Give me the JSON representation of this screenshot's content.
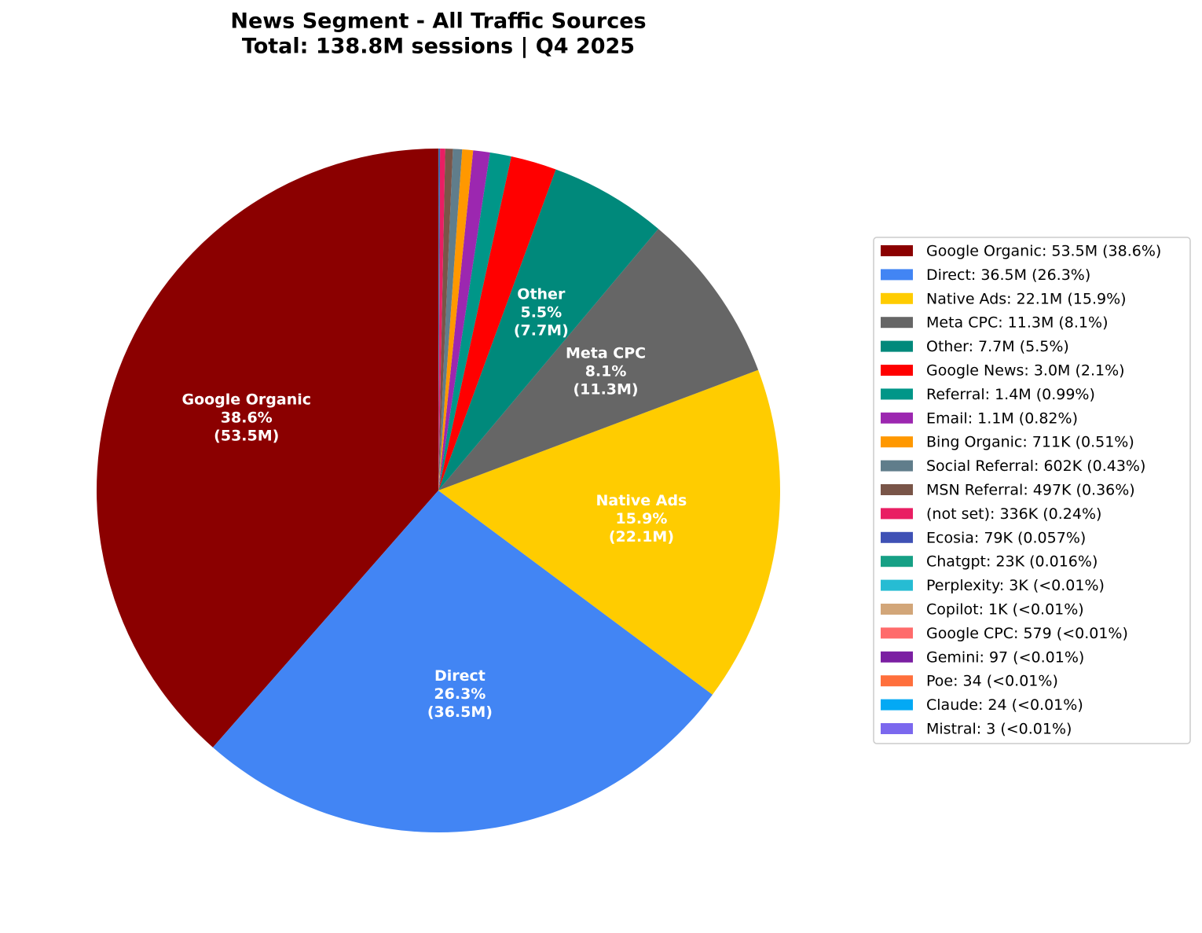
{
  "chart_data": {
    "type": "pie",
    "title": "News Segment - All Traffic Sources",
    "subtitle": "Total: 138.8M sessions | Q4 2025",
    "categories": [
      "Google Organic",
      "Direct",
      "Native Ads",
      "Meta CPC",
      "Other",
      "Google News",
      "Referral",
      "Email",
      "Bing Organic",
      "Social Referral",
      "MSN Referral",
      "(not set)",
      "Ecosia",
      "Chatgpt",
      "Perplexity",
      "Copilot",
      "Google CPC",
      "Gemini",
      "Poe",
      "Claude",
      "Mistral"
    ],
    "values": [
      53500000,
      36500000,
      22100000,
      11300000,
      7700000,
      3000000,
      1400000,
      1100000,
      711000,
      602000,
      497000,
      336000,
      79000,
      23000,
      3000,
      1000,
      579,
      97,
      34,
      24,
      3
    ],
    "colors": [
      "#8b0000",
      "#4285f4",
      "#ffcc00",
      "#666666",
      "#00897b",
      "#ff0000",
      "#009688",
      "#9c27b0",
      "#ff9800",
      "#607d8b",
      "#795548",
      "#e91e63",
      "#3f51b5",
      "#16a085",
      "#26bcd3",
      "#d2a679",
      "#ff6b6b",
      "#7b1fa2",
      "#ff6f3c",
      "#03a9f4",
      "#7b68ee"
    ],
    "legend_labels": [
      "Google Organic: 53.5M (38.6%)",
      "Direct: 36.5M (26.3%)",
      "Native Ads: 22.1M (15.9%)",
      "Meta CPC: 11.3M (8.1%)",
      "Other: 7.7M (5.5%)",
      "Google News: 3.0M (2.1%)",
      "Referral: 1.4M (0.99%)",
      "Email: 1.1M (0.82%)",
      "Bing Organic: 711K (0.51%)",
      "Social Referral: 602K (0.43%)",
      "MSN Referral: 497K (0.36%)",
      "(not set): 336K (0.24%)",
      "Ecosia: 79K (0.057%)",
      "Chatgpt: 23K (0.016%)",
      "Perplexity: 3K (<0.01%)",
      "Copilot: 1K (<0.01%)",
      "Google CPC: 579 (<0.01%)",
      "Gemini: 97 (<0.01%)",
      "Poe: 34 (<0.01%)",
      "Claude: 24 (<0.01%)",
      "Mistral: 3 (<0.01%)"
    ],
    "slice_labels": [
      [
        "Google Organic",
        "38.6%",
        "(53.5M)"
      ],
      [
        "Direct",
        "26.3%",
        "(36.5M)"
      ],
      [
        "Native Ads",
        "15.9%",
        "(22.1M)"
      ],
      [
        "Meta CPC",
        "8.1%",
        "(11.3M)"
      ],
      [
        "Other",
        "5.5%",
        "(7.7M)"
      ]
    ]
  }
}
